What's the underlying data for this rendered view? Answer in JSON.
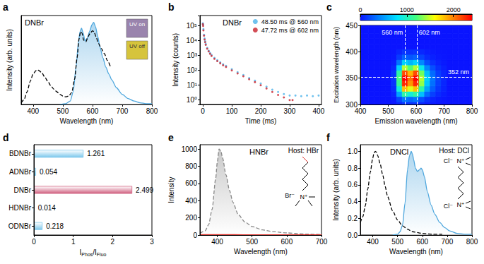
{
  "chart_data": [
    {
      "panel_label": "a",
      "type": "line",
      "title": "DNBr",
      "x_label": "Wavelength (nm)",
      "y_label": "Intensity (arb. units)",
      "xlim": [
        360,
        800
      ],
      "xticks": [
        400,
        500,
        600,
        700,
        800
      ],
      "ylim": [
        0,
        1.05
      ],
      "tick_labels": "x",
      "grid": false,
      "series": [
        {
          "type": "line",
          "line_style": "dashed",
          "color": "#000000",
          "x": [
            360,
            370,
            380,
            390,
            400,
            410,
            415,
            420,
            430,
            440,
            450,
            460,
            470,
            480,
            490,
            500,
            510,
            520,
            530,
            540,
            548,
            555,
            560,
            565,
            570,
            578,
            585,
            592,
            600,
            605,
            612,
            620,
            630,
            640,
            650,
            660
          ],
          "values": [
            0.02,
            0.06,
            0.15,
            0.27,
            0.36,
            0.4,
            0.41,
            0.4,
            0.37,
            0.32,
            0.27,
            0.22,
            0.18,
            0.15,
            0.12,
            0.1,
            0.09,
            0.1,
            0.14,
            0.3,
            0.55,
            0.78,
            0.86,
            0.84,
            0.76,
            0.74,
            0.8,
            0.84,
            0.87,
            0.86,
            0.8,
            0.72,
            0.66,
            0.6,
            0.52,
            0.45
          ]
        },
        {
          "type": "area",
          "line_style": "solid",
          "color": "#4da6dd",
          "x": [
            490,
            510,
            525,
            535,
            545,
            552,
            558,
            563,
            568,
            575,
            582,
            590,
            598,
            604,
            610,
            618,
            625,
            635,
            645,
            655,
            665,
            680,
            700,
            720,
            740,
            760,
            780,
            800
          ],
          "values": [
            0,
            0.01,
            0.04,
            0.15,
            0.45,
            0.72,
            0.86,
            0.9,
            0.85,
            0.75,
            0.78,
            0.86,
            0.94,
            0.97,
            0.92,
            0.8,
            0.68,
            0.55,
            0.44,
            0.36,
            0.29,
            0.2,
            0.12,
            0.07,
            0.04,
            0.02,
            0.01,
            0.01
          ]
        }
      ],
      "insets": [
        {
          "label": "UV on",
          "color": "#9a84ad"
        },
        {
          "label": "UV off",
          "color": "#d6c43c"
        }
      ]
    },
    {
      "panel_label": "b",
      "type": "scatter",
      "title": "DNBr",
      "x_label": "Time (ms)",
      "y_label": "Intensity (counts)",
      "xlim": [
        -10,
        410
      ],
      "xticks": [
        0,
        100,
        200,
        300,
        400
      ],
      "ylim": [
        0.5,
        500000
      ],
      "yticks": [
        {
          "value": 1,
          "label": "10⁰"
        },
        {
          "value": 10,
          "label": "10¹"
        },
        {
          "value": 100,
          "label": "10²"
        },
        {
          "value": 1000,
          "label": "10³"
        },
        {
          "value": 10000,
          "label": "10⁴"
        },
        {
          "value": 100000,
          "label": "10⁵"
        }
      ],
      "log": "y",
      "legend": "top-right",
      "grid": false,
      "marker": "circle",
      "series": [
        {
          "name": "48.50 ms @ 560 nm",
          "color": "#4cb3ea",
          "x": [
            0,
            1,
            2,
            4,
            6,
            8,
            10,
            15,
            20,
            25,
            30,
            40,
            50,
            60,
            70,
            80,
            100,
            120,
            140,
            160,
            180,
            200,
            220,
            240,
            260,
            280,
            300,
            320,
            340,
            360,
            380,
            400
          ],
          "values": [
            150000,
            120000,
            60000,
            25000,
            14000,
            9000,
            6000,
            3300,
            2100,
            1500,
            1100,
            700,
            480,
            350,
            260,
            200,
            120,
            75,
            48,
            30,
            20,
            13,
            8,
            5,
            3.5,
            2.5,
            2,
            2,
            1.8,
            2,
            1.8,
            2
          ]
        },
        {
          "name": "47.72 ms @ 602 nm",
          "color": "#c8202c",
          "x": [
            0,
            1,
            2,
            4,
            6,
            8,
            10,
            15,
            20,
            25,
            30,
            40,
            50,
            60,
            70,
            80,
            100,
            120,
            140,
            160,
            180,
            200,
            220,
            240,
            260,
            280,
            300,
            310
          ],
          "values": [
            130000,
            100000,
            50000,
            22000,
            12000,
            8000,
            5300,
            2900,
            1900,
            1300,
            950,
            600,
            420,
            300,
            220,
            170,
            100,
            62,
            40,
            25,
            16,
            10,
            6,
            3.5,
            2.2,
            1.5,
            1,
            1
          ]
        }
      ]
    },
    {
      "panel_label": "c",
      "type": "heatmap",
      "x_label": "Emission wavelength (nm)",
      "y_label": "Excitation wavelength (nm)",
      "xlim": [
        400,
        800
      ],
      "xticks": [
        400,
        500,
        600,
        700,
        800
      ],
      "ylim": [
        300,
        450
      ],
      "yticks": [
        300,
        350,
        400,
        450
      ],
      "grid": false,
      "x": [
        400,
        420,
        440,
        460,
        480,
        500,
        520,
        540,
        560,
        580,
        600,
        620,
        640,
        660,
        680,
        700,
        720,
        740,
        760,
        780,
        800
      ],
      "y": [
        300,
        310,
        320,
        330,
        340,
        350,
        360,
        370,
        380,
        390,
        400,
        410,
        420,
        430,
        440,
        450
      ],
      "z": [
        [
          0,
          0,
          0,
          0,
          0,
          0,
          6,
          60,
          120,
          102,
          120,
          72,
          36,
          18,
          8,
          4,
          0,
          0,
          0,
          0,
          0
        ],
        [
          0,
          0,
          0,
          0,
          0,
          0,
          18,
          180,
          360,
          306,
          360,
          216,
          108,
          54,
          25,
          11,
          0,
          0,
          0,
          0,
          0
        ],
        [
          0,
          0,
          0,
          0,
          0,
          0,
          54,
          540,
          1080,
          918,
          1080,
          648,
          324,
          162,
          76,
          32,
          0,
          0,
          0,
          0,
          0
        ],
        [
          0,
          0,
          0,
          0,
          0,
          0,
          90,
          900,
          1800,
          1530,
          1800,
          1080,
          540,
          270,
          126,
          54,
          0,
          0,
          0,
          0,
          0
        ],
        [
          0,
          0,
          0,
          0,
          0,
          0,
          114,
          1140,
          2280,
          1938,
          2280,
          1368,
          684,
          342,
          160,
          68,
          0,
          0,
          0,
          0,
          0
        ],
        [
          0,
          0,
          0,
          0,
          0,
          0,
          120,
          1200,
          2400,
          2040,
          2400,
          1440,
          720,
          360,
          168,
          72,
          0,
          0,
          0,
          0,
          0
        ],
        [
          0,
          0,
          0,
          0,
          0,
          0,
          108,
          1080,
          2160,
          1836,
          2160,
          1296,
          648,
          324,
          151,
          65,
          0,
          0,
          0,
          0,
          0
        ],
        [
          0,
          0,
          0,
          0,
          0,
          0,
          72,
          720,
          1440,
          1224,
          1440,
          864,
          432,
          216,
          101,
          43,
          0,
          0,
          0,
          0,
          0
        ],
        [
          0,
          0,
          0,
          0,
          0,
          0,
          36,
          360,
          720,
          612,
          720,
          432,
          216,
          108,
          50,
          22,
          0,
          0,
          0,
          0,
          0
        ],
        [
          0,
          0,
          0,
          0,
          0,
          0,
          14,
          144,
          288,
          245,
          288,
          173,
          86,
          43,
          20,
          9,
          0,
          0,
          0,
          0,
          0
        ],
        [
          0,
          0,
          0,
          0,
          0,
          0,
          6,
          60,
          120,
          102,
          120,
          72,
          36,
          18,
          8,
          4,
          0,
          0,
          0,
          0,
          0
        ],
        [
          0,
          0,
          0,
          0,
          0,
          0,
          0,
          0,
          0,
          0,
          0,
          0,
          0,
          0,
          0,
          0,
          0,
          0,
          0,
          0,
          0
        ],
        [
          0,
          0,
          0,
          0,
          0,
          0,
          0,
          0,
          0,
          0,
          0,
          0,
          0,
          0,
          0,
          0,
          0,
          0,
          0,
          0,
          0
        ],
        [
          0,
          0,
          0,
          0,
          0,
          0,
          0,
          0,
          0,
          0,
          0,
          0,
          0,
          0,
          0,
          0,
          0,
          0,
          0,
          0,
          0
        ],
        [
          0,
          0,
          0,
          0,
          0,
          0,
          0,
          0,
          0,
          0,
          0,
          0,
          0,
          0,
          0,
          0,
          0,
          0,
          0,
          0,
          0
        ],
        [
          0,
          0,
          0,
          0,
          0,
          0,
          0,
          0,
          0,
          0,
          0,
          0,
          0,
          0,
          0,
          0,
          0,
          0,
          0,
          0,
          0
        ]
      ],
      "colorbar": {
        "range": [
          0,
          2400
        ],
        "ticks": [
          0,
          1000,
          2000
        ]
      },
      "reference_lines": [
        {
          "axis": "x",
          "value": 560,
          "label": "560 nm"
        },
        {
          "axis": "x",
          "value": 602,
          "label": "602 nm"
        },
        {
          "axis": "y",
          "value": 352,
          "label": "352 nm"
        }
      ]
    },
    {
      "panel_label": "d",
      "type": "bar",
      "orientation": "horizontal",
      "x_label": "IPhos/IFluo",
      "categories": [
        "BDNBr",
        "ADNBr",
        "DNBr",
        "HDNBr",
        "ODNBr"
      ],
      "values": [
        1.261,
        0.054,
        2.499,
        0.014,
        0.218
      ],
      "colors": [
        "#7cc8ec",
        "#7cc8ec",
        "#d0607f",
        "#7cc8ec",
        "#7cc8ec"
      ],
      "xlim": [
        0,
        3
      ],
      "xticks": [
        0,
        1,
        2,
        3
      ],
      "data_labels": true,
      "grid": false
    },
    {
      "panel_label": "e",
      "type": "line",
      "title": "HNBr",
      "subtitle": "Host: HBr",
      "x_label": "Wavelength (nm)",
      "y_label": "Intensity",
      "xlim": [
        350,
        700
      ],
      "xticks": [
        400,
        500,
        600,
        700
      ],
      "ylim": [
        0,
        1050
      ],
      "yticks": [
        0,
        200,
        400,
        600,
        800,
        1000
      ],
      "grid": false,
      "series": [
        {
          "type": "area",
          "line_style": "dashed",
          "color": "#888888",
          "x": [
            350,
            365,
            375,
            385,
            395,
            400,
            405,
            410,
            415,
            425,
            435,
            445,
            460,
            480,
            500,
            530,
            560,
            600,
            650,
            700
          ],
          "values": [
            20,
            50,
            120,
            300,
            650,
            850,
            1000,
            980,
            900,
            700,
            520,
            380,
            240,
            150,
            100,
            60,
            40,
            25,
            12,
            6
          ]
        },
        {
          "type": "line",
          "line_style": "solid",
          "color": "#e0302a",
          "x": [
            350,
            400,
            450,
            500,
            550,
            600,
            650,
            700
          ],
          "values": [
            4,
            5,
            4,
            3,
            3,
            3,
            2,
            2
          ]
        }
      ],
      "structure_labels": [
        "Br⁻",
        "N⁺"
      ]
    },
    {
      "panel_label": "f",
      "type": "line",
      "title": "DNCl",
      "subtitle": "Host: DCl",
      "x_label": "Wavelength (nm)",
      "y_label": "Intensity (arb. units)",
      "xlim": [
        350,
        800
      ],
      "xticks": [
        400,
        500,
        600,
        700,
        800
      ],
      "ylim": [
        0,
        1.08
      ],
      "yticks": [
        {
          "value": 0,
          "label": "0.0"
        },
        0.2,
        0.4,
        0.6,
        0.8,
        {
          "value": 1,
          "label": "1.0"
        }
      ],
      "grid": false,
      "series": [
        {
          "type": "line",
          "line_style": "dashed",
          "color": "#000000",
          "x": [
            350,
            360,
            370,
            380,
            390,
            400,
            405,
            410,
            415,
            420,
            430,
            440,
            450,
            460,
            480,
            500,
            520,
            540,
            560,
            600,
            640,
            680
          ],
          "values": [
            0.15,
            0.22,
            0.35,
            0.55,
            0.75,
            0.92,
            0.98,
            1.0,
            0.99,
            0.95,
            0.85,
            0.72,
            0.58,
            0.46,
            0.29,
            0.18,
            0.11,
            0.07,
            0.04,
            0.02,
            0.01,
            0.01
          ]
        },
        {
          "type": "area",
          "line_style": "solid",
          "color": "#4da6dd",
          "x": [
            480,
            500,
            510,
            520,
            530,
            540,
            548,
            555,
            560,
            565,
            572,
            580,
            588,
            595,
            600,
            608,
            620,
            635,
            650,
            670,
            690,
            710,
            740,
            770,
            800
          ],
          "values": [
            0,
            0.01,
            0.04,
            0.12,
            0.38,
            0.78,
            0.95,
            1.0,
            0.97,
            0.9,
            0.8,
            0.76,
            0.78,
            0.8,
            0.78,
            0.7,
            0.52,
            0.36,
            0.25,
            0.15,
            0.09,
            0.05,
            0.02,
            0.01,
            0.01
          ]
        }
      ],
      "structure_labels": [
        "N⁺",
        "Cl⁻",
        "N⁺",
        "Cl⁻"
      ]
    }
  ]
}
